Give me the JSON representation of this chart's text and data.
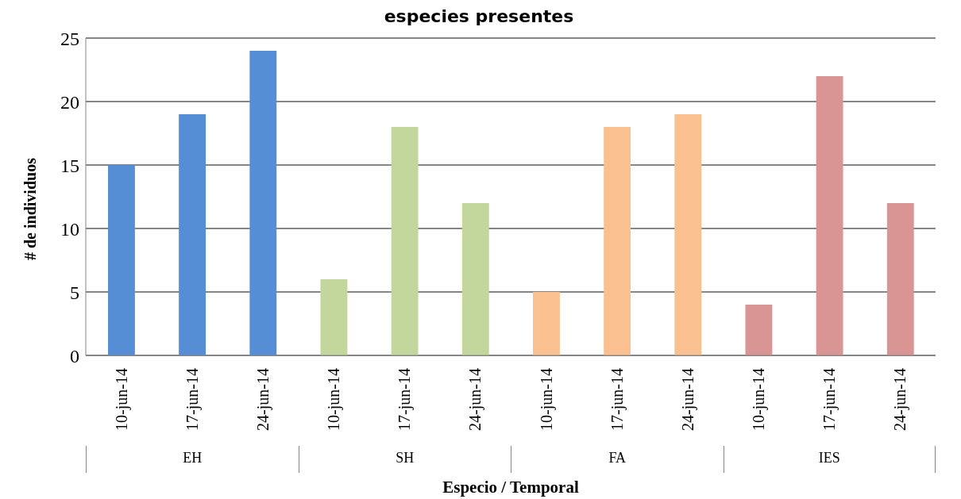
{
  "chart_data": {
    "type": "bar",
    "title": "especies presentes",
    "xlabel": "Especio / Temporal",
    "ylabel": "# de individuos",
    "categories": [
      "10-jun-14",
      "17-jun-14",
      "24-jun-14",
      "10-jun-14",
      "17-jun-14",
      "24-jun-14",
      "10-jun-14",
      "17-jun-14",
      "24-jun-14",
      "10-jun-14",
      "17-jun-14",
      "24-jun-14"
    ],
    "values": [
      15,
      19,
      24,
      6,
      18,
      12,
      5,
      18,
      19,
      4,
      22,
      12
    ],
    "colors": [
      "#558ed5",
      "#558ed5",
      "#558ed5",
      "#c3d69b",
      "#c3d69b",
      "#c3d69b",
      "#fac090",
      "#fac090",
      "#fac090",
      "#d99594",
      "#d99594",
      "#d99594"
    ],
    "annotations": [
      "EH",
      "SH",
      "FA",
      "IES"
    ],
    "ylim": [
      0,
      25
    ],
    "yticks": [
      0,
      5,
      10,
      15,
      20,
      25
    ],
    "grid": "y"
  }
}
